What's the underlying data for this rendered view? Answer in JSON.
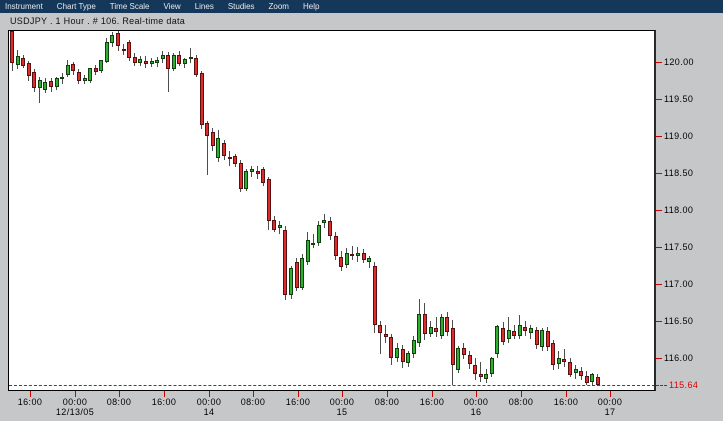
{
  "menu": {
    "items": [
      {
        "label": "Instrument"
      },
      {
        "label": "Chart Type"
      },
      {
        "label": "Time Scale"
      },
      {
        "label": "View"
      },
      {
        "label": "Lines"
      },
      {
        "label": "Studies"
      },
      {
        "label": "Zoom"
      },
      {
        "label": "Help"
      }
    ]
  },
  "title": "USDJPY . 1 Hour . # 106. Real-time data",
  "chart_data": {
    "type": "candlestick",
    "symbol": "USDJPY",
    "timeframe": "1 Hour",
    "bars_shown": 106,
    "feed_status": "Real-time data",
    "current_price": 115.64,
    "ylim": [
      115.57,
      120.45
    ],
    "grid": false,
    "y_axis": {
      "ticks": [
        {
          "label": "120.00",
          "price": 120.0
        },
        {
          "label": "119.50",
          "price": 119.5
        },
        {
          "label": "119.00",
          "price": 119.0
        },
        {
          "label": "118.50",
          "price": 118.5
        },
        {
          "label": "118.00",
          "price": 118.0
        },
        {
          "label": "117.50",
          "price": 117.5
        },
        {
          "label": "117.00",
          "price": 117.0
        },
        {
          "label": "116.50",
          "price": 116.5
        },
        {
          "label": "116.00",
          "price": 116.0
        }
      ],
      "current": {
        "label": "115.64",
        "price": 115.64
      }
    },
    "x_axis": {
      "ticks": [
        {
          "time": "16:00"
        },
        {
          "time": "00:00",
          "date": "12/13/05"
        },
        {
          "time": "08:00"
        },
        {
          "time": "16:00"
        },
        {
          "time": "00:00",
          "date": "14"
        },
        {
          "time": "08:00"
        },
        {
          "time": "16:00"
        },
        {
          "time": "00:00",
          "date": "15"
        },
        {
          "time": "08:00"
        },
        {
          "time": "16:00"
        },
        {
          "time": "00:00",
          "date": "16"
        },
        {
          "time": "08:00"
        },
        {
          "time": "16:00"
        },
        {
          "time": "00:00",
          "date": "17"
        }
      ]
    },
    "ohlc": [
      [
        120.42,
        120.45,
        119.88,
        119.99
      ],
      [
        119.96,
        120.16,
        119.9,
        120.08
      ],
      [
        120.06,
        120.1,
        119.92,
        119.95
      ],
      [
        119.99,
        120.02,
        119.74,
        119.81
      ],
      [
        119.87,
        119.9,
        119.6,
        119.65
      ],
      [
        119.65,
        119.8,
        119.45,
        119.76
      ],
      [
        119.62,
        119.78,
        119.58,
        119.73
      ],
      [
        119.74,
        119.78,
        119.6,
        119.66
      ],
      [
        119.66,
        119.8,
        119.62,
        119.78
      ],
      [
        119.78,
        119.85,
        119.7,
        119.8
      ],
      [
        119.83,
        120.03,
        119.8,
        119.96
      ],
      [
        119.97,
        120.0,
        119.83,
        119.88
      ],
      [
        119.87,
        119.9,
        119.7,
        119.74
      ],
      [
        119.74,
        119.82,
        119.7,
        119.79
      ],
      [
        119.74,
        119.92,
        119.72,
        119.92
      ],
      [
        119.92,
        119.96,
        119.82,
        119.86
      ],
      [
        119.88,
        120.03,
        119.85,
        120.03
      ],
      [
        120.0,
        120.33,
        119.98,
        120.27
      ],
      [
        120.25,
        120.4,
        120.2,
        120.36
      ],
      [
        120.39,
        120.43,
        120.15,
        120.21
      ],
      [
        120.18,
        120.25,
        120.1,
        120.16
      ],
      [
        120.27,
        120.3,
        120.02,
        120.06
      ],
      [
        120.07,
        120.12,
        119.95,
        119.98
      ],
      [
        119.98,
        120.08,
        119.94,
        120.04
      ],
      [
        120.02,
        120.08,
        119.92,
        119.97
      ],
      [
        119.97,
        120.06,
        119.93,
        120.02
      ],
      [
        119.99,
        120.07,
        119.93,
        120.03
      ],
      [
        120.04,
        120.15,
        119.98,
        120.1
      ],
      [
        120.1,
        120.14,
        119.6,
        119.9
      ],
      [
        119.91,
        120.12,
        119.88,
        120.1
      ],
      [
        120.1,
        120.15,
        119.95,
        119.97
      ],
      [
        119.97,
        120.06,
        119.92,
        120.04
      ],
      [
        120.04,
        120.19,
        119.99,
        120.07
      ],
      [
        120.05,
        120.1,
        119.8,
        119.83
      ],
      [
        119.85,
        119.88,
        119.1,
        119.15
      ],
      [
        119.17,
        119.2,
        118.47,
        119.0
      ],
      [
        119.05,
        119.11,
        118.8,
        118.86
      ],
      [
        118.7,
        119.08,
        118.65,
        118.97
      ],
      [
        118.9,
        118.95,
        118.68,
        118.73
      ],
      [
        118.72,
        118.8,
        118.6,
        118.7
      ],
      [
        118.73,
        118.76,
        118.58,
        118.62
      ],
      [
        118.64,
        118.68,
        118.24,
        118.29
      ],
      [
        118.29,
        118.56,
        118.26,
        118.53
      ],
      [
        118.52,
        118.6,
        118.45,
        118.55
      ],
      [
        118.53,
        118.6,
        118.42,
        118.48
      ],
      [
        118.55,
        118.58,
        118.32,
        118.37
      ],
      [
        118.42,
        118.45,
        117.73,
        117.85
      ],
      [
        117.87,
        117.92,
        117.7,
        117.73
      ],
      [
        117.75,
        117.85,
        117.68,
        117.8
      ],
      [
        117.73,
        117.78,
        116.78,
        116.85
      ],
      [
        116.85,
        117.25,
        116.8,
        117.22
      ],
      [
        117.3,
        117.35,
        116.9,
        116.95
      ],
      [
        116.95,
        117.4,
        116.92,
        117.35
      ],
      [
        117.3,
        117.7,
        117.25,
        117.6
      ],
      [
        117.55,
        117.68,
        117.48,
        117.56
      ],
      [
        117.55,
        117.85,
        117.52,
        117.8
      ],
      [
        117.82,
        117.95,
        117.75,
        117.86
      ],
      [
        117.85,
        117.9,
        117.6,
        117.65
      ],
      [
        117.65,
        117.7,
        117.33,
        117.38
      ],
      [
        117.37,
        117.45,
        117.18,
        117.23
      ],
      [
        117.25,
        117.48,
        117.22,
        117.42
      ],
      [
        117.4,
        117.52,
        117.33,
        117.38
      ],
      [
        117.38,
        117.5,
        117.3,
        117.42
      ],
      [
        117.42,
        117.47,
        117.28,
        117.32
      ],
      [
        117.3,
        117.38,
        117.22,
        117.35
      ],
      [
        117.25,
        117.3,
        116.34,
        116.45
      ],
      [
        116.45,
        116.5,
        116.06,
        116.34
      ],
      [
        116.32,
        116.45,
        116.2,
        116.28
      ],
      [
        116.28,
        116.33,
        115.9,
        116.0
      ],
      [
        116.0,
        116.2,
        115.95,
        116.14
      ],
      [
        116.12,
        116.18,
        115.86,
        115.95
      ],
      [
        115.93,
        116.1,
        115.88,
        116.07
      ],
      [
        116.05,
        116.3,
        116.0,
        116.25
      ],
      [
        116.2,
        116.8,
        116.15,
        116.6
      ],
      [
        116.6,
        116.75,
        116.25,
        116.33
      ],
      [
        116.33,
        116.5,
        116.28,
        116.42
      ],
      [
        116.4,
        116.55,
        116.28,
        116.35
      ],
      [
        116.3,
        116.6,
        116.25,
        116.55
      ],
      [
        116.55,
        116.62,
        116.3,
        116.35
      ],
      [
        116.4,
        116.52,
        115.64,
        115.9
      ],
      [
        115.84,
        116.16,
        115.8,
        116.13
      ],
      [
        116.13,
        116.2,
        115.98,
        116.04
      ],
      [
        116.04,
        116.1,
        115.85,
        115.92
      ],
      [
        115.9,
        116.0,
        115.7,
        115.78
      ],
      [
        115.78,
        115.95,
        115.68,
        115.74
      ],
      [
        115.72,
        115.85,
        115.66,
        115.78
      ],
      [
        115.78,
        116.02,
        115.74,
        116.0
      ],
      [
        116.05,
        116.45,
        116.0,
        116.43
      ],
      [
        116.41,
        116.48,
        116.18,
        116.22
      ],
      [
        116.25,
        116.55,
        116.2,
        116.38
      ],
      [
        116.36,
        116.45,
        116.25,
        116.3
      ],
      [
        116.3,
        116.58,
        116.25,
        116.45
      ],
      [
        116.42,
        116.5,
        116.3,
        116.36
      ],
      [
        116.34,
        116.44,
        116.26,
        116.4
      ],
      [
        116.38,
        116.42,
        116.12,
        116.18
      ],
      [
        116.15,
        116.4,
        116.1,
        116.38
      ],
      [
        116.36,
        116.42,
        116.1,
        116.15
      ],
      [
        116.2,
        116.25,
        115.84,
        115.9
      ],
      [
        115.92,
        116.1,
        115.85,
        116.0
      ],
      [
        115.98,
        116.12,
        115.88,
        115.94
      ],
      [
        115.95,
        116.0,
        115.75,
        115.77
      ],
      [
        115.8,
        115.9,
        115.72,
        115.85
      ],
      [
        115.83,
        115.88,
        115.7,
        115.75
      ],
      [
        115.76,
        115.82,
        115.64,
        115.66
      ],
      [
        115.68,
        115.8,
        115.62,
        115.78
      ],
      [
        115.75,
        115.78,
        115.62,
        115.64
      ]
    ],
    "colors": {
      "up": "#2fae2f",
      "down": "#dc2c2c",
      "wick": "#4d4d4d",
      "current_line": "#e60000",
      "axis_tick": "#d00000",
      "current_text": "#e00000",
      "menubar_bg": "#15385a",
      "window_bg": "#c6c7c9",
      "plot_bg": "#ffffff"
    }
  }
}
